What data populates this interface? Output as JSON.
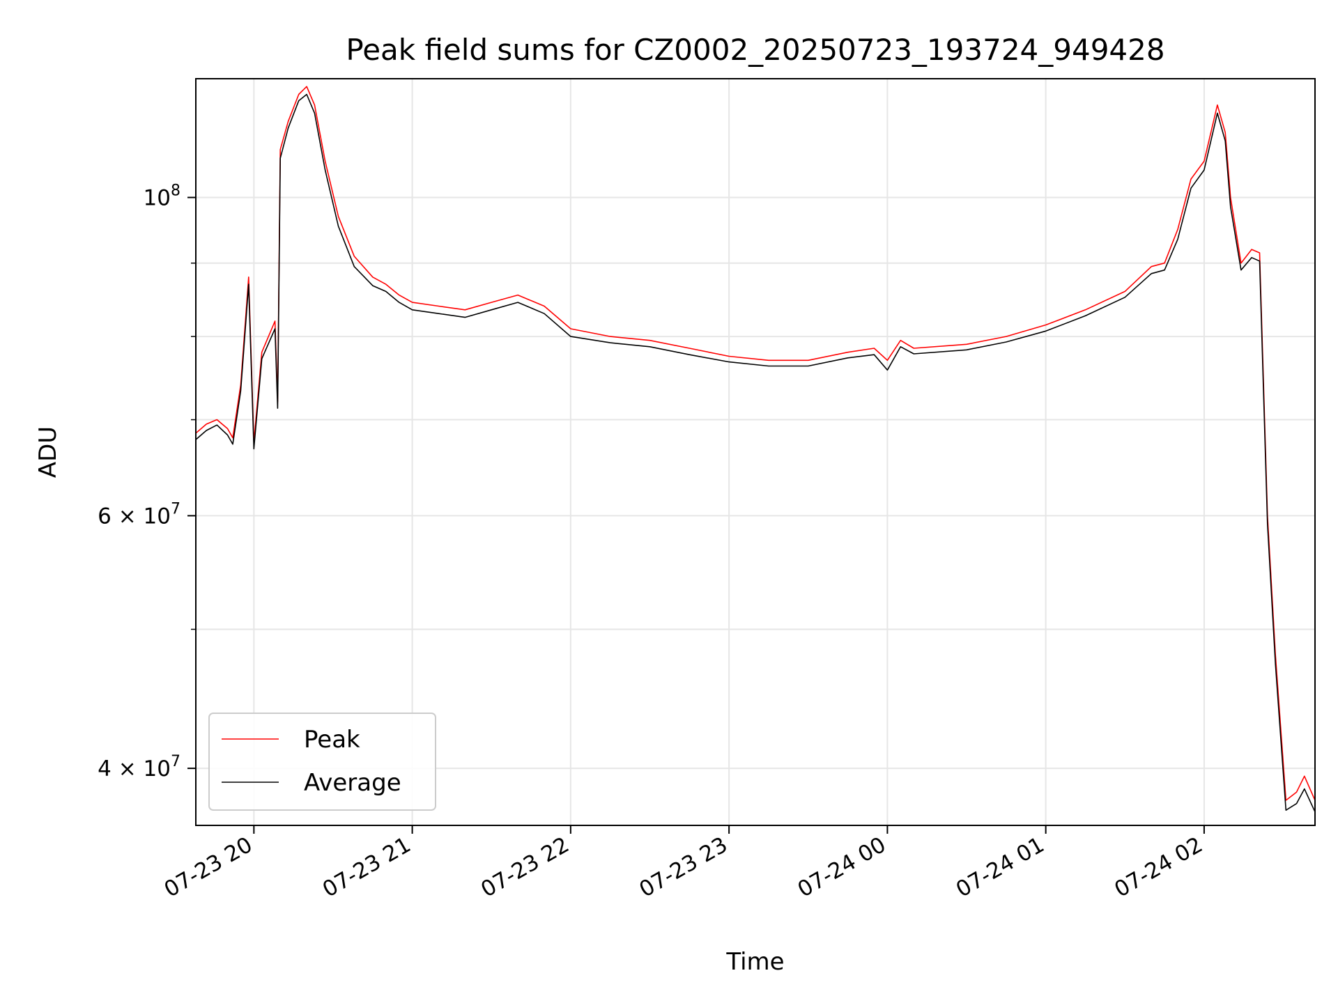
{
  "chart_data": {
    "type": "line",
    "title": "Peak field sums for CZ0002_20250723_193724_949428",
    "xlabel": "Time",
    "ylabel": "ADU",
    "xscale": "time",
    "yscale": "log",
    "xlim": [
      "2025-07-23 19:38",
      "2025-07-24 02:42"
    ],
    "ylim": [
      36500000,
      121000000
    ],
    "x_ticks": [
      {
        "t": "2025-07-23 20:00",
        "label": "07-23 20"
      },
      {
        "t": "2025-07-23 21:00",
        "label": "07-23 21"
      },
      {
        "t": "2025-07-23 22:00",
        "label": "07-23 22"
      },
      {
        "t": "2025-07-23 23:00",
        "label": "07-23 23"
      },
      {
        "t": "2025-07-24 00:00",
        "label": "07-24 00"
      },
      {
        "t": "2025-07-24 01:00",
        "label": "07-24 01"
      },
      {
        "t": "2025-07-24 02:00",
        "label": "07-24 02"
      }
    ],
    "y_major_ticks": [
      {
        "v": 100000000,
        "base": "10",
        "exp": "8"
      },
      {
        "v": 60000000,
        "base": "6 × 10",
        "exp": "7"
      },
      {
        "v": 40000000,
        "base": "4 × 10",
        "exp": "7"
      }
    ],
    "y_minor_ticks": [
      50000000,
      70000000,
      80000000,
      90000000
    ],
    "grid": true,
    "legend": "lower-left",
    "series": [
      {
        "name": "Peak",
        "color": "#ff0000",
        "points": [
          [
            "2025-07-23 19:38",
            68500000
          ],
          [
            "2025-07-23 19:42",
            69500000
          ],
          [
            "2025-07-23 19:46",
            70000000
          ],
          [
            "2025-07-23 19:50",
            69000000
          ],
          [
            "2025-07-23 19:52",
            68000000
          ],
          [
            "2025-07-23 19:55",
            74000000
          ],
          [
            "2025-07-23 19:58",
            88000000
          ],
          [
            "2025-07-23 20:00",
            67500000
          ],
          [
            "2025-07-23 20:03",
            78000000
          ],
          [
            "2025-07-23 20:08",
            82000000
          ],
          [
            "2025-07-23 20:09",
            72000000
          ],
          [
            "2025-07-23 20:10",
            108000000
          ],
          [
            "2025-07-23 20:13",
            113000000
          ],
          [
            "2025-07-23 20:17",
            118000000
          ],
          [
            "2025-07-23 20:20",
            119500000
          ],
          [
            "2025-07-23 20:23",
            116000000
          ],
          [
            "2025-07-23 20:27",
            106000000
          ],
          [
            "2025-07-23 20:32",
            97000000
          ],
          [
            "2025-07-23 20:38",
            91000000
          ],
          [
            "2025-07-23 20:45",
            88000000
          ],
          [
            "2025-07-23 20:50",
            87000000
          ],
          [
            "2025-07-23 20:55",
            85500000
          ],
          [
            "2025-07-23 21:00",
            84500000
          ],
          [
            "2025-07-23 21:10",
            84000000
          ],
          [
            "2025-07-23 21:20",
            83500000
          ],
          [
            "2025-07-23 21:30",
            84500000
          ],
          [
            "2025-07-23 21:40",
            85500000
          ],
          [
            "2025-07-23 21:50",
            84000000
          ],
          [
            "2025-07-23 22:00",
            81000000
          ],
          [
            "2025-07-23 22:15",
            80000000
          ],
          [
            "2025-07-23 22:30",
            79500000
          ],
          [
            "2025-07-23 22:45",
            78500000
          ],
          [
            "2025-07-23 23:00",
            77500000
          ],
          [
            "2025-07-23 23:15",
            77000000
          ],
          [
            "2025-07-23 23:30",
            77000000
          ],
          [
            "2025-07-23 23:45",
            78000000
          ],
          [
            "2025-07-23 23:55",
            78500000
          ],
          [
            "2025-07-24 00:00",
            77000000
          ],
          [
            "2025-07-24 00:05",
            79500000
          ],
          [
            "2025-07-24 00:10",
            78500000
          ],
          [
            "2025-07-24 00:30",
            79000000
          ],
          [
            "2025-07-24 00:45",
            80000000
          ],
          [
            "2025-07-24 01:00",
            81500000
          ],
          [
            "2025-07-24 01:15",
            83500000
          ],
          [
            "2025-07-24 01:30",
            86000000
          ],
          [
            "2025-07-24 01:40",
            89500000
          ],
          [
            "2025-07-24 01:45",
            90000000
          ],
          [
            "2025-07-24 01:50",
            95000000
          ],
          [
            "2025-07-24 01:55",
            103000000
          ],
          [
            "2025-07-24 02:00",
            106000000
          ],
          [
            "2025-07-24 02:05",
            116000000
          ],
          [
            "2025-07-24 02:08",
            111000000
          ],
          [
            "2025-07-24 02:10",
            100000000
          ],
          [
            "2025-07-24 02:14",
            90000000
          ],
          [
            "2025-07-24 02:18",
            92000000
          ],
          [
            "2025-07-24 02:21",
            91500000
          ],
          [
            "2025-07-24 02:24",
            60000000
          ],
          [
            "2025-07-24 02:27",
            48000000
          ],
          [
            "2025-07-24 02:31",
            38000000
          ],
          [
            "2025-07-24 02:35",
            38500000
          ],
          [
            "2025-07-24 02:38",
            39500000
          ],
          [
            "2025-07-24 02:42",
            38000000
          ]
        ]
      },
      {
        "name": "Average",
        "color": "#000000",
        "points": [
          [
            "2025-07-23 19:38",
            67800000
          ],
          [
            "2025-07-23 19:42",
            68800000
          ],
          [
            "2025-07-23 19:46",
            69400000
          ],
          [
            "2025-07-23 19:50",
            68300000
          ],
          [
            "2025-07-23 19:52",
            67300000
          ],
          [
            "2025-07-23 19:55",
            73300000
          ],
          [
            "2025-07-23 19:58",
            87000000
          ],
          [
            "2025-07-23 20:00",
            66800000
          ],
          [
            "2025-07-23 20:03",
            77200000
          ],
          [
            "2025-07-23 20:08",
            81000000
          ],
          [
            "2025-07-23 20:09",
            71300000
          ],
          [
            "2025-07-23 20:10",
            106500000
          ],
          [
            "2025-07-23 20:13",
            111800000
          ],
          [
            "2025-07-23 20:17",
            116800000
          ],
          [
            "2025-07-23 20:20",
            118000000
          ],
          [
            "2025-07-23 20:23",
            114500000
          ],
          [
            "2025-07-23 20:27",
            104500000
          ],
          [
            "2025-07-23 20:32",
            95500000
          ],
          [
            "2025-07-23 20:38",
            89500000
          ],
          [
            "2025-07-23 20:45",
            86800000
          ],
          [
            "2025-07-23 20:50",
            86000000
          ],
          [
            "2025-07-23 20:55",
            84500000
          ],
          [
            "2025-07-23 21:00",
            83500000
          ],
          [
            "2025-07-23 21:10",
            83000000
          ],
          [
            "2025-07-23 21:20",
            82500000
          ],
          [
            "2025-07-23 21:30",
            83500000
          ],
          [
            "2025-07-23 21:40",
            84500000
          ],
          [
            "2025-07-23 21:50",
            83000000
          ],
          [
            "2025-07-23 22:00",
            80000000
          ],
          [
            "2025-07-23 22:15",
            79200000
          ],
          [
            "2025-07-23 22:30",
            78700000
          ],
          [
            "2025-07-23 22:45",
            77700000
          ],
          [
            "2025-07-23 23:00",
            76800000
          ],
          [
            "2025-07-23 23:15",
            76300000
          ],
          [
            "2025-07-23 23:30",
            76300000
          ],
          [
            "2025-07-23 23:45",
            77300000
          ],
          [
            "2025-07-23 23:55",
            77700000
          ],
          [
            "2025-07-24 00:00",
            75800000
          ],
          [
            "2025-07-24 00:05",
            78700000
          ],
          [
            "2025-07-24 00:10",
            77800000
          ],
          [
            "2025-07-24 00:30",
            78300000
          ],
          [
            "2025-07-24 00:45",
            79300000
          ],
          [
            "2025-07-24 01:00",
            80700000
          ],
          [
            "2025-07-24 01:15",
            82700000
          ],
          [
            "2025-07-24 01:30",
            85200000
          ],
          [
            "2025-07-24 01:40",
            88500000
          ],
          [
            "2025-07-24 01:45",
            89000000
          ],
          [
            "2025-07-24 01:50",
            93500000
          ],
          [
            "2025-07-24 01:55",
            101500000
          ],
          [
            "2025-07-24 02:00",
            104500000
          ],
          [
            "2025-07-24 02:05",
            114500000
          ],
          [
            "2025-07-24 02:08",
            109500000
          ],
          [
            "2025-07-24 02:10",
            98500000
          ],
          [
            "2025-07-24 02:14",
            89000000
          ],
          [
            "2025-07-24 02:18",
            90800000
          ],
          [
            "2025-07-24 02:21",
            90300000
          ],
          [
            "2025-07-24 02:24",
            59200000
          ],
          [
            "2025-07-24 02:27",
            47300000
          ],
          [
            "2025-07-24 02:31",
            37400000
          ],
          [
            "2025-07-24 02:35",
            37800000
          ],
          [
            "2025-07-24 02:38",
            38700000
          ],
          [
            "2025-07-24 02:42",
            37300000
          ]
        ]
      }
    ]
  }
}
